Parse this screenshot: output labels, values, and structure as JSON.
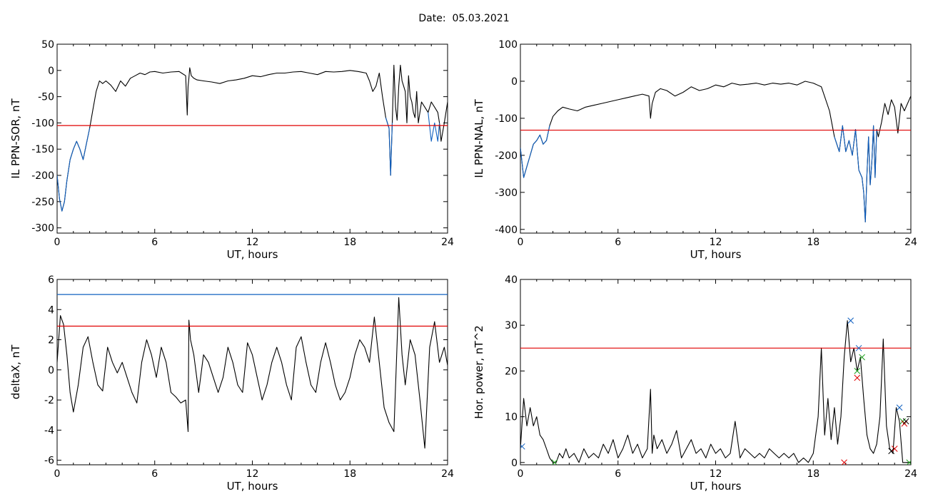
{
  "figure": {
    "title": "Date:  05.03.2021"
  },
  "chart_data": [
    {
      "type": "line",
      "ylabel": "IL PPN-SOR, nT",
      "xlabel": "UT, hours",
      "xlim": [
        0,
        24
      ],
      "ylim": [
        -310,
        50
      ],
      "xticks": [
        0,
        6,
        12,
        18,
        24
      ],
      "yticks": [
        50,
        0,
        -50,
        -100,
        -150,
        -200,
        -250,
        -300
      ],
      "grid": false,
      "hlines": [
        {
          "y": -105,
          "color": "#e00000"
        }
      ],
      "series": [
        {
          "color": "#000000",
          "x": [
            0,
            0.15,
            0.3,
            0.45,
            0.6,
            0.8,
            1.0,
            1.2,
            1.4,
            1.6,
            1.8,
            2.0,
            2.2,
            2.4,
            2.6,
            2.8,
            3.0,
            3.3,
            3.6,
            3.9,
            4.2,
            4.5,
            4.8,
            5.1,
            5.4,
            5.7,
            6.0,
            6.5,
            7.0,
            7.5,
            7.9,
            8.0,
            8.05,
            8.1,
            8.15,
            8.25,
            8.4,
            8.6,
            9.0,
            9.5,
            10.0,
            10.5,
            11.0,
            11.5,
            12.0,
            12.5,
            13.0,
            13.5,
            14.0,
            14.5,
            15.0,
            15.5,
            16.0,
            16.5,
            17.0,
            17.5,
            18.0,
            18.5,
            19.0,
            19.2,
            19.4,
            19.6,
            19.8,
            20.0,
            20.2,
            20.4,
            20.5,
            20.6,
            20.7,
            20.8,
            20.9,
            21.0,
            21.1,
            21.2,
            21.3,
            21.4,
            21.5,
            21.6,
            21.7,
            21.8,
            21.9,
            22.0,
            22.1,
            22.2,
            22.4,
            22.6,
            22.8,
            23.0,
            23.2,
            23.4,
            23.5,
            23.6,
            23.8,
            24.0
          ],
          "y": [
            -200,
            -245,
            -268,
            -250,
            -210,
            -170,
            -150,
            -135,
            -150,
            -170,
            -140,
            -110,
            -75,
            -40,
            -20,
            -25,
            -20,
            -28,
            -40,
            -20,
            -30,
            -15,
            -10,
            -5,
            -8,
            -3,
            -2,
            -5,
            -3,
            -2,
            -10,
            -85,
            -30,
            -15,
            5,
            -10,
            -15,
            -18,
            -20,
            -22,
            -25,
            -20,
            -18,
            -15,
            -10,
            -12,
            -8,
            -5,
            -5,
            -3,
            -2,
            -5,
            -8,
            -2,
            -3,
            -2,
            0,
            -2,
            -5,
            -20,
            -40,
            -30,
            -5,
            -50,
            -90,
            -110,
            -200,
            -100,
            10,
            -70,
            -95,
            -30,
            10,
            -20,
            -30,
            -40,
            -100,
            -10,
            -50,
            -60,
            -80,
            -90,
            -40,
            -100,
            -60,
            -70,
            -80,
            -60,
            -70,
            -80,
            -100,
            -135,
            -100,
            -60
          ]
        },
        {
          "color": "#1060c0",
          "x": [
            0,
            0.15,
            0.3,
            0.45,
            0.6,
            0.8,
            1.0,
            1.2,
            1.4,
            1.6,
            1.8,
            2.0
          ],
          "y": [
            -200,
            -245,
            -268,
            -250,
            -210,
            -170,
            -150,
            -135,
            -150,
            -170,
            -140,
            -110
          ]
        },
        {
          "color": "#1060c0",
          "x": [
            20.2,
            20.4,
            20.5,
            20.6
          ],
          "y": [
            -90,
            -110,
            -200,
            -100
          ]
        },
        {
          "color": "#1060c0",
          "x": [
            22.8,
            23.0,
            23.2,
            23.4,
            23.5
          ],
          "y": [
            -80,
            -135,
            -100,
            -135,
            -100
          ]
        }
      ]
    },
    {
      "type": "line",
      "ylabel": "IL PPN-NAL, nT",
      "xlabel": "UT, hours",
      "xlim": [
        0,
        24
      ],
      "ylim": [
        -410,
        100
      ],
      "xticks": [
        0,
        6,
        12,
        18,
        24
      ],
      "yticks": [
        100,
        0,
        -100,
        -200,
        -300,
        -400
      ],
      "grid": false,
      "hlines": [
        {
          "y": -132,
          "color": "#e00000"
        }
      ],
      "series": [
        {
          "color": "#000000",
          "x": [
            0,
            0.2,
            0.4,
            0.6,
            0.8,
            1.0,
            1.2,
            1.4,
            1.6,
            1.8,
            2.0,
            2.3,
            2.6,
            3.0,
            3.5,
            4.0,
            4.5,
            5.0,
            5.5,
            6.0,
            6.5,
            7.0,
            7.5,
            7.9,
            8.0,
            8.1,
            8.3,
            8.6,
            9.0,
            9.5,
            10.0,
            10.5,
            11.0,
            11.5,
            12.0,
            12.5,
            13.0,
            13.5,
            14.0,
            14.5,
            15.0,
            15.5,
            16.0,
            16.5,
            17.0,
            17.5,
            18.0,
            18.5,
            19.0,
            19.3,
            19.6,
            19.8,
            20.0,
            20.2,
            20.4,
            20.6,
            20.8,
            21.0,
            21.1,
            21.2,
            21.3,
            21.4,
            21.5,
            21.6,
            21.7,
            21.8,
            21.9,
            22.0,
            22.2,
            22.4,
            22.6,
            22.8,
            23.0,
            23.2,
            23.4,
            23.6,
            23.8,
            24.0
          ],
          "y": [
            -180,
            -260,
            -230,
            -200,
            -170,
            -160,
            -145,
            -170,
            -160,
            -120,
            -95,
            -80,
            -70,
            -75,
            -80,
            -70,
            -65,
            -60,
            -55,
            -50,
            -45,
            -40,
            -35,
            -40,
            -100,
            -60,
            -30,
            -20,
            -25,
            -40,
            -30,
            -15,
            -25,
            -20,
            -10,
            -15,
            -5,
            -10,
            -8,
            -5,
            -10,
            -5,
            -8,
            -5,
            -10,
            0,
            -5,
            -15,
            -80,
            -150,
            -190,
            -120,
            -190,
            -160,
            -200,
            -130,
            -240,
            -260,
            -300,
            -380,
            -250,
            -150,
            -280,
            -220,
            -120,
            -260,
            -130,
            -150,
            -110,
            -60,
            -90,
            -50,
            -70,
            -140,
            -60,
            -80,
            -60,
            -40
          ]
        },
        {
          "color": "#1060c0",
          "x": [
            0,
            0.2,
            0.4,
            0.6,
            0.8,
            1.0,
            1.2,
            1.4,
            1.6,
            1.8
          ],
          "y": [
            -180,
            -260,
            -230,
            -200,
            -170,
            -160,
            -145,
            -170,
            -160,
            -120
          ]
        },
        {
          "color": "#1060c0",
          "x": [
            19.3,
            19.6,
            19.8,
            20.0,
            20.2,
            20.4,
            20.6,
            20.8,
            21.0,
            21.1,
            21.2,
            21.3,
            21.4,
            21.5,
            21.6,
            21.7,
            21.8,
            21.9
          ],
          "y": [
            -150,
            -190,
            -120,
            -190,
            -160,
            -200,
            -130,
            -240,
            -260,
            -300,
            -380,
            -250,
            -150,
            -280,
            -220,
            -120,
            -260,
            -130
          ]
        }
      ]
    },
    {
      "type": "line",
      "ylabel": "deltaX, nT",
      "xlabel": "UT, hours",
      "xlim": [
        0,
        24
      ],
      "ylim": [
        -6.3,
        6
      ],
      "xticks": [
        0,
        6,
        12,
        18,
        24
      ],
      "yticks": [
        6,
        4,
        2,
        0,
        -2,
        -4,
        -6
      ],
      "grid": false,
      "hlines": [
        {
          "y": 5.0,
          "color": "#1060c0"
        },
        {
          "y": 2.9,
          "color": "#e00000"
        }
      ],
      "series": [
        {
          "color": "#000000",
          "x": [
            0,
            0.2,
            0.4,
            0.6,
            0.8,
            1.0,
            1.3,
            1.6,
            1.9,
            2.2,
            2.5,
            2.8,
            3.1,
            3.4,
            3.7,
            4.0,
            4.3,
            4.6,
            4.9,
            5.2,
            5.5,
            5.8,
            6.1,
            6.4,
            6.7,
            7.0,
            7.3,
            7.6,
            7.9,
            8.05,
            8.1,
            8.2,
            8.4,
            8.7,
            9.0,
            9.3,
            9.6,
            9.9,
            10.2,
            10.5,
            10.8,
            11.1,
            11.4,
            11.7,
            12.0,
            12.3,
            12.6,
            12.9,
            13.2,
            13.5,
            13.8,
            14.1,
            14.4,
            14.7,
            15.0,
            15.3,
            15.6,
            15.9,
            16.2,
            16.5,
            16.8,
            17.1,
            17.4,
            17.7,
            18.0,
            18.3,
            18.6,
            18.9,
            19.2,
            19.5,
            19.8,
            20.1,
            20.4,
            20.7,
            21.0,
            21.2,
            21.4,
            21.7,
            22.0,
            22.3,
            22.6,
            22.9,
            23.2,
            23.5,
            23.8,
            24.0
          ],
          "y": [
            0.5,
            3.6,
            3.0,
            1.0,
            -1.5,
            -2.8,
            -1.0,
            1.5,
            2.2,
            0.5,
            -1.0,
            -1.4,
            1.5,
            0.5,
            -0.2,
            0.5,
            -0.5,
            -1.5,
            -2.2,
            0.5,
            2.0,
            1.0,
            -0.5,
            1.5,
            0.5,
            -1.5,
            -1.8,
            -2.2,
            -2.0,
            -4.1,
            3.3,
            2.0,
            1.0,
            -1.5,
            1.0,
            0.5,
            -0.5,
            -1.5,
            -0.5,
            1.5,
            0.5,
            -1.0,
            -1.5,
            1.8,
            1.0,
            -0.5,
            -2.0,
            -1.0,
            0.5,
            1.5,
            0.5,
            -1.0,
            -2.0,
            1.5,
            2.2,
            0.5,
            -1.0,
            -1.5,
            0.5,
            1.8,
            0.5,
            -1.0,
            -2.0,
            -1.5,
            -0.5,
            1.0,
            2.0,
            1.5,
            0.5,
            3.5,
            0.5,
            -2.5,
            -3.5,
            -4.1,
            4.8,
            1.0,
            -1.0,
            2.0,
            1.0,
            -2.0,
            -5.2,
            1.5,
            3.2,
            0.5,
            1.5,
            0.3
          ]
        }
      ]
    },
    {
      "type": "line",
      "ylabel": "Hor. power, nT^2",
      "xlabel": "UT, hours",
      "xlim": [
        0,
        24
      ],
      "ylim": [
        -0.5,
        40
      ],
      "xticks": [
        0,
        6,
        12,
        18,
        24
      ],
      "yticks": [
        40,
        30,
        20,
        10,
        0
      ],
      "grid": false,
      "hlines": [
        {
          "y": 25,
          "color": "#e00000"
        }
      ],
      "series": [
        {
          "color": "#000000",
          "x": [
            0,
            0.2,
            0.4,
            0.6,
            0.8,
            1.0,
            1.2,
            1.4,
            1.6,
            1.8,
            2.0,
            2.2,
            2.4,
            2.6,
            2.8,
            3.0,
            3.3,
            3.6,
            3.9,
            4.2,
            4.5,
            4.8,
            5.1,
            5.4,
            5.7,
            6.0,
            6.3,
            6.6,
            6.9,
            7.2,
            7.5,
            7.8,
            8.0,
            8.1,
            8.2,
            8.4,
            8.7,
            9.0,
            9.3,
            9.6,
            9.9,
            10.2,
            10.5,
            10.8,
            11.1,
            11.4,
            11.7,
            12.0,
            12.3,
            12.6,
            12.9,
            13.2,
            13.5,
            13.8,
            14.1,
            14.4,
            14.7,
            15.0,
            15.3,
            15.6,
            15.9,
            16.2,
            16.5,
            16.8,
            17.1,
            17.4,
            17.7,
            18.0,
            18.3,
            18.5,
            18.7,
            18.9,
            19.1,
            19.3,
            19.5,
            19.7,
            19.9,
            20.1,
            20.3,
            20.5,
            20.7,
            20.9,
            21.1,
            21.3,
            21.5,
            21.7,
            21.9,
            22.1,
            22.3,
            22.5,
            22.7,
            22.9,
            23.1,
            23.3,
            23.5,
            23.7,
            23.9,
            24.0
          ],
          "y": [
            3,
            14,
            8,
            12,
            8,
            10,
            6,
            5,
            3,
            1,
            0,
            0,
            2,
            1,
            3,
            1,
            2,
            0,
            3,
            1,
            2,
            1,
            4,
            2,
            5,
            1,
            3,
            6,
            2,
            4,
            1,
            3,
            16,
            2,
            6,
            3,
            5,
            2,
            4,
            7,
            1,
            3,
            5,
            2,
            3,
            1,
            4,
            2,
            3,
            1,
            2,
            9,
            1,
            3,
            2,
            1,
            2,
            1,
            3,
            2,
            1,
            2,
            1,
            2,
            0,
            1,
            0,
            2,
            10,
            25,
            6,
            14,
            5,
            12,
            4,
            10,
            23,
            31,
            22,
            25,
            20,
            23,
            14,
            6,
            3,
            2,
            4,
            10,
            27,
            8,
            3,
            2,
            12,
            9,
            0,
            0,
            0,
            0
          ]
        }
      ],
      "markers": [
        {
          "x": 0.1,
          "y": 3.5,
          "color": "#1060c0"
        },
        {
          "x": 20.3,
          "y": 31,
          "color": "#1060c0"
        },
        {
          "x": 20.8,
          "y": 25,
          "color": "#1060c0"
        },
        {
          "x": 23.3,
          "y": 12,
          "color": "#1060c0"
        },
        {
          "x": 2.1,
          "y": 0,
          "color": "#20a020"
        },
        {
          "x": 20.7,
          "y": 20,
          "color": "#20a020"
        },
        {
          "x": 21.0,
          "y": 23,
          "color": "#20a020"
        },
        {
          "x": 23.5,
          "y": 9,
          "color": "#20a020"
        },
        {
          "x": 23.9,
          "y": 0,
          "color": "#20a020"
        },
        {
          "x": 19.9,
          "y": 0,
          "color": "#e00000"
        },
        {
          "x": 20.7,
          "y": 18.5,
          "color": "#e00000"
        },
        {
          "x": 23.0,
          "y": 3,
          "color": "#e00000"
        },
        {
          "x": 23.6,
          "y": 8.5,
          "color": "#e00000"
        },
        {
          "x": 22.8,
          "y": 2.5,
          "color": "#000000"
        },
        {
          "x": 23.7,
          "y": 9,
          "color": "#000000"
        }
      ]
    }
  ]
}
